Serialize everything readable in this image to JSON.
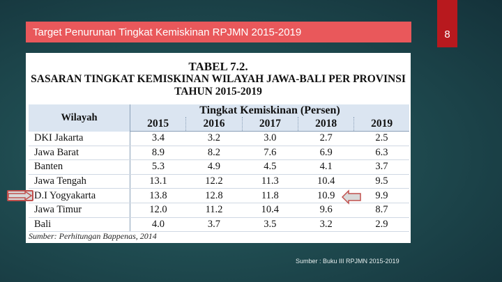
{
  "slide": {
    "title": "Target Penurunan Tingkat Kemiskinan RPJMN 2015-2019",
    "page_number": "8",
    "footer_source": "Sumber : Buku III RPJMN 2015-2019"
  },
  "table": {
    "heading_line1": "TABEL 7.2.",
    "heading_line2": "SASARAN TINGKAT KEMISKINAN WILAYAH JAWA-BALI PER PROVINSI",
    "heading_line3": "TAHUN 2015-2019",
    "col_wilayah": "Wilayah",
    "col_group": "Tingkat Kemiskinan (Persen)",
    "years": [
      "2015",
      "2016",
      "2017",
      "2018",
      "2019"
    ],
    "rows": [
      {
        "name": "DKI Jakarta",
        "values": [
          "3.4",
          "3.2",
          "3.0",
          "2.7",
          "2.5"
        ]
      },
      {
        "name": "Jawa Barat",
        "values": [
          "8.9",
          "8.2",
          "7.6",
          "6.9",
          "6.3"
        ]
      },
      {
        "name": "Banten",
        "values": [
          "5.3",
          "4.9",
          "4.5",
          "4.1",
          "3.7"
        ]
      },
      {
        "name": "Jawa Tengah",
        "values": [
          "13.1",
          "12.2",
          "11.3",
          "10.4",
          "9.5"
        ]
      },
      {
        "name": "D.I Yogyakarta",
        "values": [
          "13.8",
          "12.8",
          "11.8",
          "10.9",
          "9.9"
        ]
      },
      {
        "name": "Jawa Timur",
        "values": [
          "12.0",
          "11.2",
          "10.4",
          "9.6",
          "8.7"
        ]
      },
      {
        "name": "Bali",
        "values": [
          "4.0",
          "3.7",
          "3.5",
          "3.2",
          "2.9"
        ]
      }
    ],
    "source_note": "Sumber: Perhitungan Bappenas, 2014"
  },
  "colors": {
    "title_bar": "#e9585b",
    "page_tab": "#b8191e",
    "header_fill": "#dbe5f1",
    "arrow_outline": "#c0504d",
    "arrow_right_outline": "#70ad47"
  },
  "icons": {
    "left_arrow": "arrow-right-icon",
    "right_arrow": "arrow-left-icon"
  }
}
